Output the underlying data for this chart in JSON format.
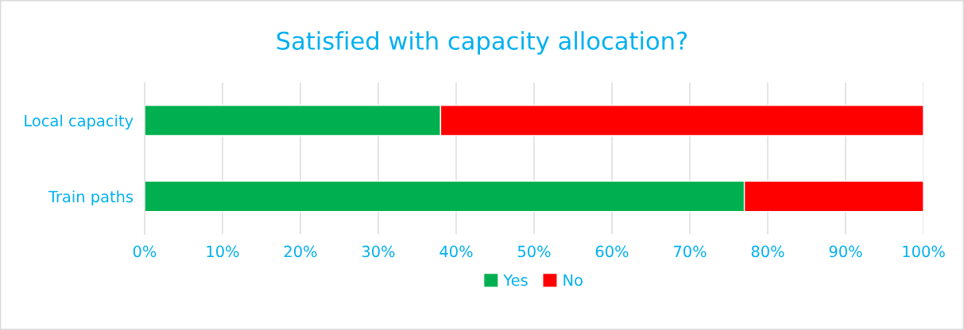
{
  "chart_data": {
    "type": "bar",
    "orientation": "horizontal",
    "stacked": true,
    "title": "Satisfied with capacity allocation?",
    "categories": [
      "Local capacity",
      "Train paths"
    ],
    "series": [
      {
        "name": "Yes",
        "color": "#00b050",
        "values": [
          38,
          77
        ]
      },
      {
        "name": "No",
        "color": "#ff0000",
        "values": [
          62,
          23
        ]
      }
    ],
    "xlim": [
      0,
      100
    ],
    "xticks": [
      {
        "value": 0,
        "label": "0%"
      },
      {
        "value": 10,
        "label": "10%"
      },
      {
        "value": 20,
        "label": "20%"
      },
      {
        "value": 30,
        "label": "30%"
      },
      {
        "value": 40,
        "label": "40%"
      },
      {
        "value": 50,
        "label": "50%"
      },
      {
        "value": 60,
        "label": "60%"
      },
      {
        "value": 70,
        "label": "70%"
      },
      {
        "value": 80,
        "label": "80%"
      },
      {
        "value": 90,
        "label": "90%"
      },
      {
        "value": 100,
        "label": "100%"
      }
    ],
    "grid": "x",
    "legend": "bottom"
  }
}
